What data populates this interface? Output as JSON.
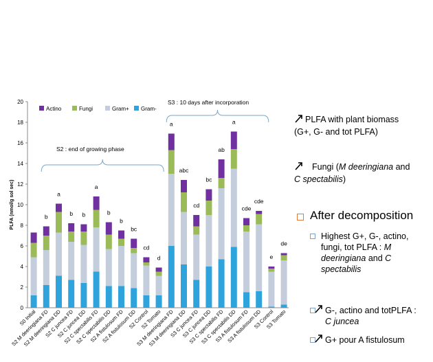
{
  "chart_data": {
    "type": "bar",
    "stacked": true,
    "ylabel": "PLFA (nmol/g sol sec)",
    "ylim": [
      0,
      20
    ],
    "yticks": [
      0,
      2,
      4,
      6,
      8,
      10,
      12,
      14,
      16,
      18,
      20
    ],
    "grid": false,
    "legend_position": "top-left",
    "categories": [
      "S0 Initial",
      "S2 M deeringiana FD",
      "S2 M deeringiana DD",
      "S2 C juncea FD",
      "S2 C juncea DD",
      "S2 C spectabilis FD",
      "S2 C spectabilis DD",
      "S2 A fistulosum FD",
      "S2 A fistulosum DD",
      "S2 Control",
      "S2 Tomato",
      "S3 M deeringiana FD",
      "S3 M deeringiana DD",
      "S3 C juncea FD",
      "S3 C juncea DD",
      "S3 C spectabilis FD",
      "S3 C spectabilis DD",
      "S3 A fistulosum FD",
      "S3 A fistulosum DD",
      "S3 Control",
      "S3 Tomato"
    ],
    "series": [
      {
        "name": "Gram-",
        "color": "#2fa4dc",
        "values": [
          1.2,
          2.2,
          3.1,
          2.7,
          2.4,
          3.5,
          2.1,
          2.1,
          1.9,
          1.2,
          1.2,
          6.0,
          4.2,
          2.7,
          4.0,
          4.7,
          5.9,
          1.5,
          1.6,
          0.1,
          0.3
        ]
      },
      {
        "name": "Gram+",
        "color": "#c3cddb",
        "values": [
          3.7,
          3.4,
          4.2,
          3.7,
          3.7,
          4.3,
          3.6,
          3.9,
          3.4,
          2.9,
          1.9,
          7.0,
          5.1,
          4.4,
          5.0,
          6.9,
          7.6,
          5.9,
          6.5,
          3.4,
          4.3
        ]
      },
      {
        "name": "Fungi",
        "color": "#9bbb59",
        "values": [
          1.4,
          1.4,
          2.0,
          1.0,
          1.3,
          1.7,
          1.4,
          0.7,
          0.5,
          0.3,
          0.4,
          2.3,
          1.9,
          0.8,
          1.4,
          1.0,
          1.9,
          0.6,
          1.0,
          0.3,
          0.5
        ]
      },
      {
        "name": "Actino",
        "color": "#7030a0",
        "values": [
          1.0,
          0.9,
          0.8,
          0.8,
          0.7,
          1.3,
          1.2,
          0.8,
          0.9,
          0.5,
          0.4,
          1.6,
          1.2,
          1.1,
          1.1,
          1.8,
          1.7,
          0.7,
          0.3,
          0.2,
          0.2
        ]
      }
    ],
    "letters": [
      "",
      "b",
      "a",
      "b",
      "b",
      "a",
      "b",
      "b",
      "bc",
      "cd",
      "d",
      "a",
      "abc",
      "cd",
      "bc",
      "ab",
      "a",
      "cde",
      "cde",
      "e",
      "de"
    ],
    "annotations": {
      "s2": "S2 : end of growing phase",
      "s3": "S3 : 10 days after incorporation"
    }
  },
  "notes": {
    "line1a": "PLFA with plant biomass",
    "line1b": "(G+, G-  and tot PLFA)",
    "line2a": "Fungi (",
    "line2b": "M deeringiana",
    "line2c": " and",
    "line2d": "C spectabilis",
    "line2e": ")",
    "after": "After decomposition",
    "b1a": "Highest  G+, G-, actino,",
    "b1b": "fungi, tot PLFA : ",
    "b1c": "M",
    "b1d": "deeringiana",
    "b1e": " and ",
    "b1f": "C",
    "b1g": "spectabilis",
    "b2a": "G-, actino and totPLFA :",
    "b2b": "C juncea",
    "b3": "G+ pour A fistulosum"
  }
}
